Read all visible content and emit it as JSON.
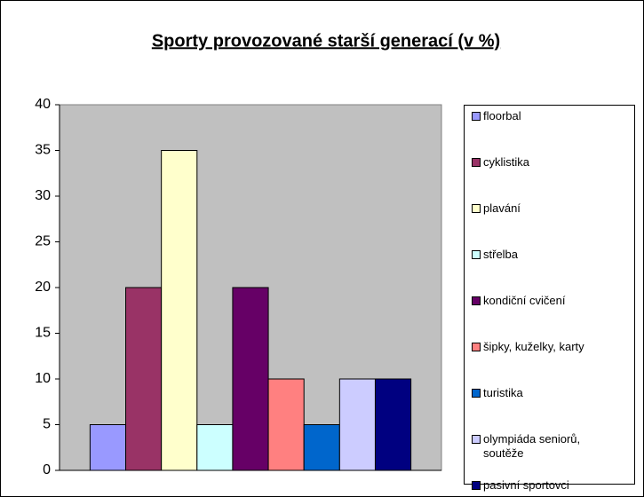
{
  "chart_data": {
    "type": "bar",
    "title": "Sporty provozované starší generací (v %)",
    "categories": [
      null
    ],
    "series": [
      {
        "name": "floorbal",
        "color": "#9999ff",
        "values": [
          5
        ]
      },
      {
        "name": "cyklistika",
        "color": "#993366",
        "values": [
          20
        ]
      },
      {
        "name": "plavání",
        "color": "#ffffcc",
        "values": [
          35
        ]
      },
      {
        "name": "střelba",
        "color": "#ccffff",
        "values": [
          5
        ]
      },
      {
        "name": "kondiční cvičení",
        "color": "#660066",
        "values": [
          20
        ]
      },
      {
        "name": "šipky, kuželky, karty",
        "color": "#ff8080",
        "values": [
          10
        ]
      },
      {
        "name": "turistika",
        "color": "#0066cc",
        "values": [
          5
        ]
      },
      {
        "name": "olympiáda seniorů, soutěže",
        "color": "#ccccff",
        "values": [
          10
        ]
      },
      {
        "name": "pasivní sportovci",
        "color": "#000080",
        "values": [
          10
        ]
      }
    ],
    "ylim": [
      0,
      40
    ],
    "yticks": [
      0,
      5,
      10,
      15,
      20,
      25,
      30,
      35,
      40
    ],
    "plot_background": "#c0c0c0",
    "legend": "right"
  }
}
